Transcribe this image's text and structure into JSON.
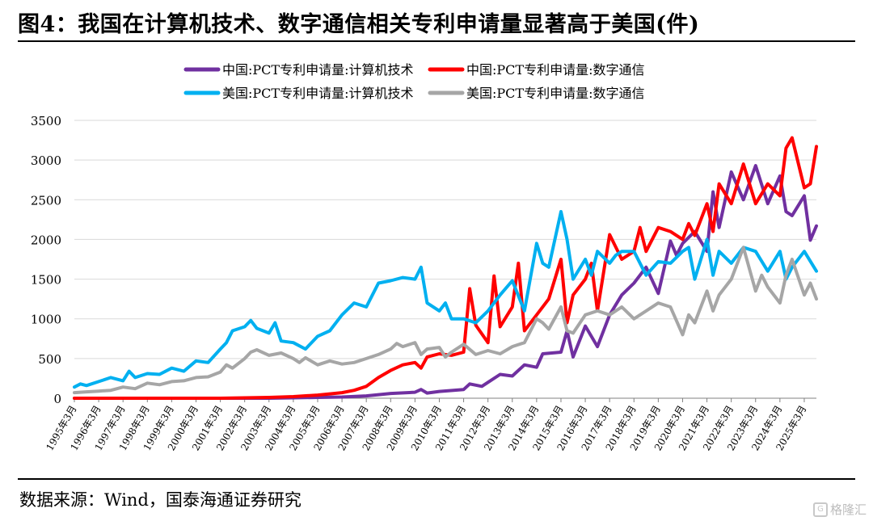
{
  "title": "图4：我国在计算机技术、数字通信相关专利申请量显著高于美国(件)",
  "source": "数据来源：Wind，国泰海通证券研究",
  "watermark": "格隆汇",
  "chart_data": {
    "type": "line",
    "ylim": [
      0,
      3500
    ],
    "yticks": [
      0,
      500,
      1000,
      1500,
      2000,
      2500,
      3000,
      3500
    ],
    "grid": "horizontal",
    "legend_position": "top",
    "x_tick_labels": [
      "1995年3月",
      "1996年3月",
      "1997年3月",
      "1998年3月",
      "1999年3月",
      "2000年3月",
      "2001年3月",
      "2002年3月",
      "2003年3月",
      "2004年3月",
      "2005年3月",
      "2006年3月",
      "2007年3月",
      "2008年3月",
      "2009年3月",
      "2010年3月",
      "2011年3月",
      "2012年3月",
      "2013年3月",
      "2014年3月",
      "2015年3月",
      "2016年3月",
      "2017年3月",
      "2018年3月",
      "2019年3月",
      "2020年3月",
      "2021年3月",
      "2022年3月",
      "2023年3月",
      "2024年3月",
      "2025年3月"
    ],
    "x_range": [
      "1995年3月",
      "2025年9月"
    ],
    "series": [
      {
        "name": "中国:PCT专利申请量:计算机技术",
        "color": "#7030a0",
        "points": [
          [
            "1995年3月",
            0
          ],
          [
            "2000年3月",
            0
          ],
          [
            "2003年3月",
            0
          ],
          [
            "2004年3月",
            5
          ],
          [
            "2005年3月",
            10
          ],
          [
            "2006年3月",
            15
          ],
          [
            "2007年3月",
            30
          ],
          [
            "2008年3月",
            60
          ],
          [
            "2009年3月",
            75
          ],
          [
            "2009年6月",
            110
          ],
          [
            "2009年9月",
            65
          ],
          [
            "2010年3月",
            85
          ],
          [
            "2011年3月",
            110
          ],
          [
            "2011年6月",
            180
          ],
          [
            "2011年12月",
            150
          ],
          [
            "2012年3月",
            200
          ],
          [
            "2012年9月",
            300
          ],
          [
            "2013年3月",
            280
          ],
          [
            "2013年9月",
            420
          ],
          [
            "2014年3月",
            390
          ],
          [
            "2014年6月",
            560
          ],
          [
            "2015年3月",
            580
          ],
          [
            "2015年6月",
            850
          ],
          [
            "2015年9月",
            520
          ],
          [
            "2016年3月",
            910
          ],
          [
            "2016年9月",
            650
          ],
          [
            "2017年3月",
            1050
          ],
          [
            "2017年9月",
            1300
          ],
          [
            "2018年3月",
            1450
          ],
          [
            "2018年9月",
            1650
          ],
          [
            "2019年3月",
            1320
          ],
          [
            "2019年9月",
            1980
          ],
          [
            "2019年12月",
            1800
          ],
          [
            "2020年3月",
            1950
          ],
          [
            "2020年9月",
            2100
          ],
          [
            "2021年3月",
            1850
          ],
          [
            "2021年6月",
            2600
          ],
          [
            "2021年9月",
            2150
          ],
          [
            "2022年3月",
            2850
          ],
          [
            "2022年9月",
            2500
          ],
          [
            "2023年3月",
            2930
          ],
          [
            "2023年9月",
            2450
          ],
          [
            "2024年3月",
            2800
          ],
          [
            "2024年6月",
            2350
          ],
          [
            "2024年9月",
            2300
          ],
          [
            "2025年3月",
            2550
          ],
          [
            "2025年6月",
            1990
          ],
          [
            "2025年9月",
            2170
          ]
        ]
      },
      {
        "name": "中国:PCT专利申请量:数字通信",
        "color": "#ff0000",
        "points": [
          [
            "1995年3月",
            0
          ],
          [
            "2001年3月",
            0
          ],
          [
            "2003年3月",
            10
          ],
          [
            "2004年3月",
            20
          ],
          [
            "2005年3月",
            40
          ],
          [
            "2006年3月",
            70
          ],
          [
            "2006年9月",
            100
          ],
          [
            "2007年3月",
            150
          ],
          [
            "2007年9月",
            260
          ],
          [
            "2008年3月",
            350
          ],
          [
            "2008年9月",
            420
          ],
          [
            "2009年3月",
            450
          ],
          [
            "2009年6月",
            380
          ],
          [
            "2009年9月",
            520
          ],
          [
            "2010年3月",
            560
          ],
          [
            "2010年9月",
            540
          ],
          [
            "2011年3月",
            580
          ],
          [
            "2011年6月",
            1380
          ],
          [
            "2011年9月",
            920
          ],
          [
            "2012年3月",
            700
          ],
          [
            "2012年6月",
            1540
          ],
          [
            "2012年9月",
            900
          ],
          [
            "2013年3月",
            1150
          ],
          [
            "2013年6月",
            1700
          ],
          [
            "2013年9月",
            850
          ],
          [
            "2014年3月",
            1050
          ],
          [
            "2014年9月",
            1250
          ],
          [
            "2015年3月",
            1750
          ],
          [
            "2015年6月",
            950
          ],
          [
            "2015年9月",
            1300
          ],
          [
            "2016年3月",
            1500
          ],
          [
            "2016年6月",
            1700
          ],
          [
            "2016年9月",
            1100
          ],
          [
            "2017年3月",
            2060
          ],
          [
            "2017年9月",
            1750
          ],
          [
            "2018年3月",
            1850
          ],
          [
            "2018年6月",
            2150
          ],
          [
            "2018年9月",
            1850
          ],
          [
            "2019年3月",
            2150
          ],
          [
            "2019年9月",
            2100
          ],
          [
            "2020年3月",
            2000
          ],
          [
            "2020年6月",
            2200
          ],
          [
            "2020年9月",
            2050
          ],
          [
            "2021年3月",
            2450
          ],
          [
            "2021年6月",
            2100
          ],
          [
            "2021年9月",
            2700
          ],
          [
            "2022年3月",
            2450
          ],
          [
            "2022年9月",
            2950
          ],
          [
            "2023年3月",
            2450
          ],
          [
            "2023年9月",
            2700
          ],
          [
            "2024年3月",
            2550
          ],
          [
            "2024年6月",
            3150
          ],
          [
            "2024年9月",
            3280
          ],
          [
            "2025年3月",
            2650
          ],
          [
            "2025年6月",
            2700
          ],
          [
            "2025年9月",
            3170
          ]
        ]
      },
      {
        "name": "美国:PCT专利申请量:计算机技术",
        "color": "#00b0f0",
        "points": [
          [
            "1995年3月",
            140
          ],
          [
            "1995年6月",
            180
          ],
          [
            "1995年9月",
            160
          ],
          [
            "1996年3月",
            210
          ],
          [
            "1996年9月",
            260
          ],
          [
            "1997年3月",
            220
          ],
          [
            "1997年6月",
            340
          ],
          [
            "1997年9月",
            260
          ],
          [
            "1998年3月",
            310
          ],
          [
            "1998年9][月",
            300
          ],
          [
            "1999年3月",
            380
          ],
          [
            "1999年9月",
            340
          ],
          [
            "2000年3月",
            470
          ],
          [
            "2000年9月",
            450
          ],
          [
            "2001年3月",
            620
          ],
          [
            "2001年6月",
            700
          ],
          [
            "2001年9月",
            850
          ],
          [
            "2002年3月",
            900
          ],
          [
            "2002年6月",
            980
          ],
          [
            "2002年9月",
            880
          ],
          [
            "2003年3月",
            820
          ],
          [
            "2003年6月",
            950
          ],
          [
            "2003年9月",
            720
          ],
          [
            "2004年3月",
            700
          ],
          [
            "2004年9月",
            620
          ],
          [
            "2005年3月",
            780
          ],
          [
            "2005年9][月",
            850
          ],
          [
            "2006年3月",
            1050
          ],
          [
            "2006年9月",
            1200
          ],
          [
            "2007年3月",
            1150
          ],
          [
            "2007年6月",
            1300
          ],
          [
            "2007年9月",
            1450
          ],
          [
            "2008年3月",
            1480
          ],
          [
            "2008年9月",
            1520
          ],
          [
            "2009年3月",
            1500
          ],
          [
            "2009年6月",
            1650
          ],
          [
            "2009年9月",
            1200
          ],
          [
            "2010年3月",
            1100
          ],
          [
            "2010年6月",
            1200
          ],
          [
            "2010年9][月",
            1000
          ],
          [
            "2011年3月",
            1000
          ],
          [
            "2011年9月",
            950
          ],
          [
            "2012年3月",
            1100
          ],
          [
            "2012年9月",
            1300
          ],
          [
            "2013年3月",
            1480
          ],
          [
            "2013年9月",
            1100
          ],
          [
            "2014年3月",
            1950
          ],
          [
            "2014年6月",
            1700
          ],
          [
            "2014年9月",
            1650
          ],
          [
            "2015年3月",
            2350
          ],
          [
            "2015年6月",
            2000
          ],
          [
            "2015年9][月",
            1500
          ],
          [
            "2016年3月",
            1750
          ],
          [
            "2016年6月",
            1550
          ],
          [
            "2016年9月",
            1850
          ],
          [
            "2017年3月",
            1700
          ],
          [
            "2017年6月",
            1800
          ],
          [
            "2017年9月",
            1850
          ],
          [
            "2018年3月",
            1850
          ],
          [
            "2018年9月",
            1550
          ],
          [
            "2019年3月",
            1720
          ],
          [
            "2019年9月",
            1700
          ],
          [
            "2020年3月",
            1850
          ],
          [
            "2020年6月",
            1900
          ],
          [
            "2020年9月",
            1500
          ],
          [
            "2021年3月",
            2000
          ],
          [
            "2021年6月",
            1550
          ],
          [
            "2021年9月",
            1850
          ],
          [
            "2022年3月",
            1700
          ],
          [
            "2022年9月",
            1900
          ],
          [
            "2023年3月",
            1850
          ],
          [
            "2023年9月",
            1600
          ],
          [
            "2024年3月",
            1850
          ],
          [
            "2024年6月",
            1500
          ],
          [
            "2024年9月",
            1650
          ],
          [
            "2025年3月",
            1850
          ],
          [
            "2025年9月",
            1600
          ]
        ]
      },
      {
        "name": "美国:PCT专利申请量:数字通信",
        "color": "#a6a6a6",
        "points": [
          [
            "1995年3月",
            70
          ],
          [
            "1995年9月",
            80
          ],
          [
            "1996年3月",
            90
          ],
          [
            "1996年9月",
            100
          ],
          [
            "1997年3月",
            140
          ],
          [
            "1997年9月",
            120
          ],
          [
            "1998年3月",
            190
          ],
          [
            "1998年9月",
            170
          ],
          [
            "1999年3月",
            210
          ],
          [
            "1999年9月",
            220
          ],
          [
            "2000年3月",
            260
          ],
          [
            "2000年9月",
            270
          ],
          [
            "2001年3月",
            330
          ],
          [
            "2001年6月",
            420
          ],
          [
            "2001年9月",
            380
          ],
          [
            "2002年3月",
            500
          ],
          [
            "2002年6月",
            580
          ],
          [
            "2002年9月",
            610
          ],
          [
            "2003年3月",
            540
          ],
          [
            "2003年9月",
            570
          ],
          [
            "2004年3月",
            500
          ],
          [
            "2004年6月",
            450
          ],
          [
            "2004年9月",
            510
          ],
          [
            "2005年3月",
            420
          ],
          [
            "2005年9月",
            470
          ],
          [
            "2006年3月",
            430
          ],
          [
            "2006年9月",
            450
          ],
          [
            "2007年3月",
            500
          ],
          [
            "2007年9月",
            550
          ],
          [
            "2008年3月",
            620
          ],
          [
            "2008年6月",
            690
          ],
          [
            "2008年9月",
            650
          ],
          [
            "2009年3月",
            700
          ],
          [
            "2009年6月",
            550
          ],
          [
            "2009年9月",
            620
          ],
          [
            "2010年3月",
            640
          ],
          [
            "2010年6月",
            520
          ],
          [
            "2010年9月",
            580
          ],
          [
            "2011年3月",
            680
          ],
          [
            "2011年9月",
            550
          ],
          [
            "2012年3月",
            600
          ],
          [
            "2012年9月",
            560
          ],
          [
            "2013年3月",
            650
          ],
          [
            "2013年9月",
            700
          ],
          [
            "2014年3月",
            1000
          ],
          [
            "2014年6月",
            950
          ],
          [
            "2014年9月",
            870
          ],
          [
            "2015年3月",
            1150
          ],
          [
            "2015年6月",
            850
          ],
          [
            "2015年9月",
            820
          ],
          [
            "2016年3月",
            1050
          ],
          [
            "2016年9月",
            1100
          ],
          [
            "2017年3月",
            1050
          ],
          [
            "2017年9月",
            1150
          ],
          [
            "2018年3月",
            1000
          ],
          [
            "2018年9月",
            1100
          ],
          [
            "2019年3月",
            1200
          ],
          [
            "2019年9月",
            1150
          ],
          [
            "2020年3月",
            800
          ],
          [
            "2020年6月",
            1050
          ],
          [
            "2020年9月",
            950
          ],
          [
            "2021年3月",
            1350
          ],
          [
            "2021年6月",
            1100
          ],
          [
            "2021年9月",
            1300
          ],
          [
            "2022年3月",
            1500
          ],
          [
            "2022年9月",
            1900
          ],
          [
            "2023年3月",
            1350
          ],
          [
            "2023年6月",
            1550
          ],
          [
            "2023年9月",
            1400
          ],
          [
            "2024年3月",
            1200
          ],
          [
            "2024年6月",
            1550
          ],
          [
            "2024年9月",
            1750
          ],
          [
            "2025年3月",
            1300
          ],
          [
            "2025年6月",
            1450
          ],
          [
            "2025年9月",
            1250
          ]
        ]
      }
    ]
  }
}
